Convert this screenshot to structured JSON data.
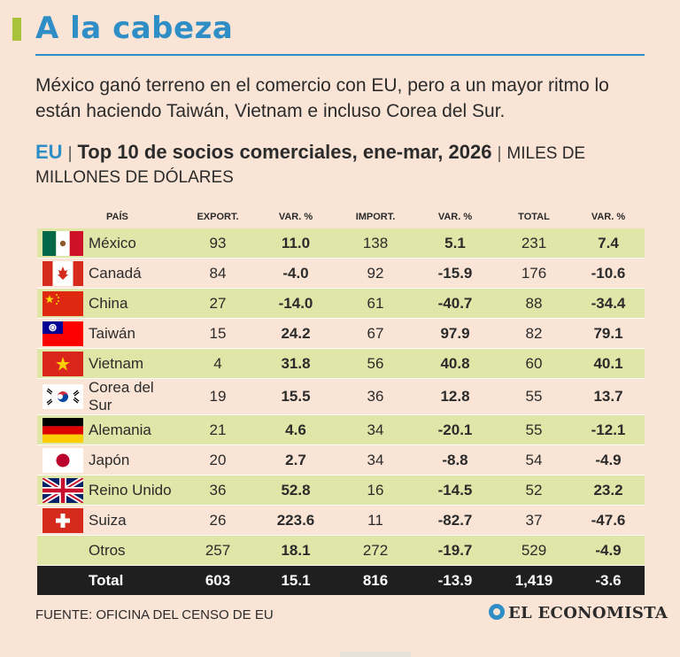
{
  "header": {
    "title": "A la cabeza",
    "subtitle": "México ganó terreno en el comercio con EU, pero a un mayor ritmo lo están haciendo Taiwán, Vietnam e incluso Corea del Sur.",
    "region": "EU",
    "table_title": "Top 10 de socios comerciales, ene-mar, 2026",
    "units": "Miles de millones de dólares"
  },
  "chart_data": {
    "type": "table",
    "columns": [
      "PAÍS",
      "EXPORT.",
      "VAR. %",
      "IMPORT.",
      "VAR. %",
      "TOTAL",
      "VAR. %"
    ],
    "rows": [
      {
        "flag": "mexico-flag-icon",
        "country": "México",
        "export": "93",
        "export_var": "11.0",
        "import": "138",
        "import_var": "5.1",
        "total": "231",
        "total_var": "7.4"
      },
      {
        "flag": "canada-flag-icon",
        "country": "Canadá",
        "export": "84",
        "export_var": "-4.0",
        "import": "92",
        "import_var": "-15.9",
        "total": "176",
        "total_var": "-10.6"
      },
      {
        "flag": "china-flag-icon",
        "country": "China",
        "export": "27",
        "export_var": "-14.0",
        "import": "61",
        "import_var": "-40.7",
        "total": "88",
        "total_var": "-34.4"
      },
      {
        "flag": "taiwan-flag-icon",
        "country": "Taiwán",
        "export": "15",
        "export_var": "24.2",
        "import": "67",
        "import_var": "97.9",
        "total": "82",
        "total_var": "79.1"
      },
      {
        "flag": "vietnam-flag-icon",
        "country": "Vietnam",
        "export": "4",
        "export_var": "31.8",
        "import": "56",
        "import_var": "40.8",
        "total": "60",
        "total_var": "40.1"
      },
      {
        "flag": "south-korea-flag-icon",
        "country": "Corea del Sur",
        "export": "19",
        "export_var": "15.5",
        "import": "36",
        "import_var": "12.8",
        "total": "55",
        "total_var": "13.7"
      },
      {
        "flag": "germany-flag-icon",
        "country": "Alemania",
        "export": "21",
        "export_var": "4.6",
        "import": "34",
        "import_var": "-20.1",
        "total": "55",
        "total_var": "-12.1"
      },
      {
        "flag": "japan-flag-icon",
        "country": "Japón",
        "export": "20",
        "export_var": "2.7",
        "import": "34",
        "import_var": "-8.8",
        "total": "54",
        "total_var": "-4.9"
      },
      {
        "flag": "uk-flag-icon",
        "country": "Reino Unido",
        "export": "36",
        "export_var": "52.8",
        "import": "16",
        "import_var": "-14.5",
        "total": "52",
        "total_var": "23.2"
      },
      {
        "flag": "switzerland-flag-icon",
        "country": "Suiza",
        "export": "26",
        "export_var": "223.6",
        "import": "11",
        "import_var": "-82.7",
        "total": "37",
        "total_var": "-47.6"
      },
      {
        "flag": "",
        "country": "Otros",
        "export": "257",
        "export_var": "18.1",
        "import": "272",
        "import_var": "-19.7",
        "total": "529",
        "total_var": "-4.9"
      }
    ],
    "total_row": {
      "country": "Total",
      "export": "603",
      "export_var": "15.1",
      "import": "816",
      "import_var": "-13.9",
      "total": "1,419",
      "total_var": "-3.6"
    }
  },
  "footer": {
    "source": "FUENTE: OFICINA DEL CENSO DE EU",
    "logo": "EL ECONOMISTA"
  },
  "colors": {
    "accent_blue": "#2f8ec5",
    "accent_green": "#a9c23a",
    "row_highlight": "#dfe6a7",
    "background": "#f9e4d6",
    "total_row": "#1f1f1f"
  }
}
